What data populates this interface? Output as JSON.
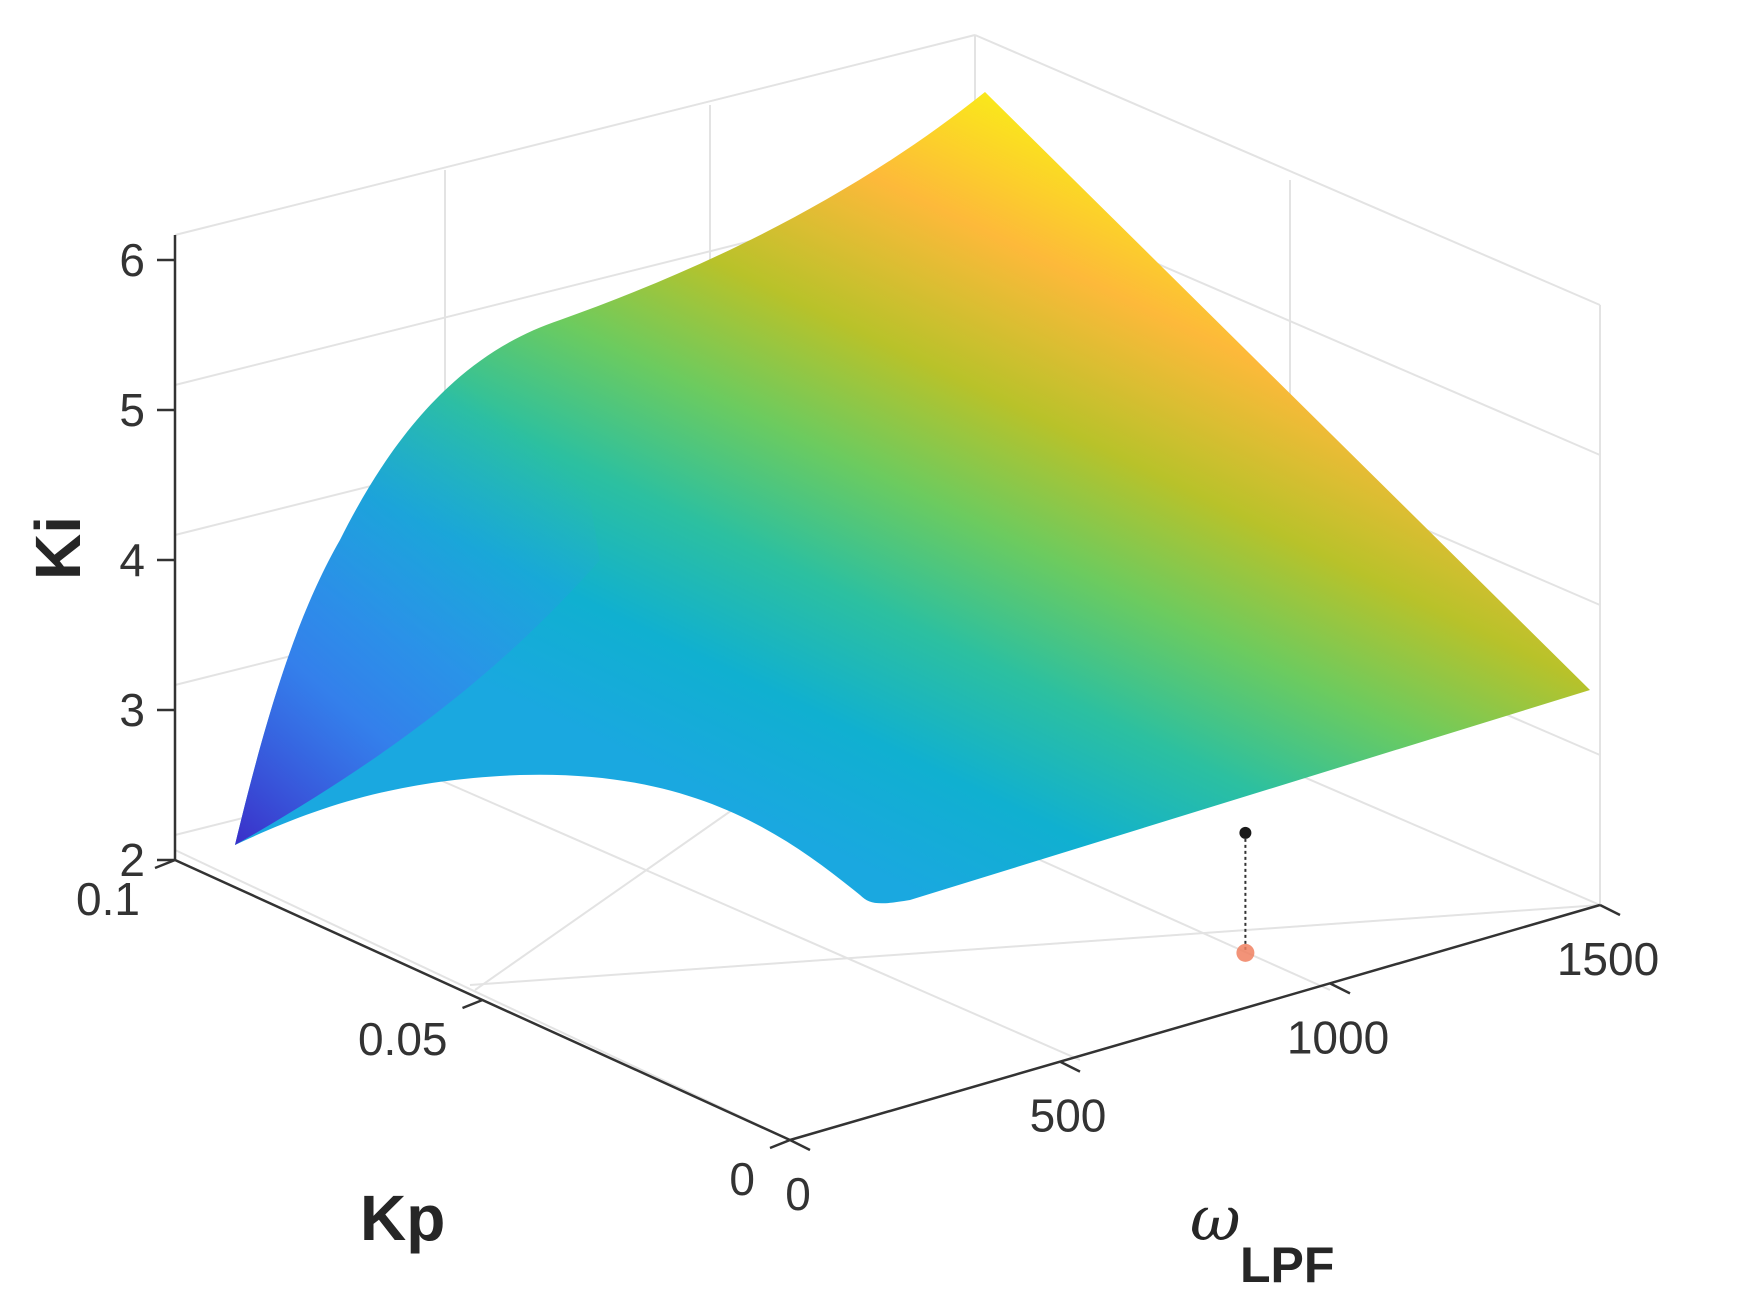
{
  "chart_data": {
    "type": "surface",
    "title": "",
    "xlabel": "ω",
    "xlabel_subscript": "LPF",
    "ylabel": "Kp",
    "zlabel": "Ki",
    "xlim": [
      0,
      1500
    ],
    "ylim": [
      0,
      0.1
    ],
    "zlim": [
      2,
      6
    ],
    "x_ticks": [
      {
        "value": 0,
        "label": "0"
      },
      {
        "value": 500,
        "label": "500"
      },
      {
        "value": 1000,
        "label": "1000"
      },
      {
        "value": 1500,
        "label": "1500"
      }
    ],
    "y_ticks": [
      {
        "value": 0,
        "label": "0"
      },
      {
        "value": 0.05,
        "label": "0.05"
      },
      {
        "value": 0.1,
        "label": "0.1"
      }
    ],
    "z_ticks": [
      {
        "value": 2,
        "label": "2"
      },
      {
        "value": 3,
        "label": "3"
      },
      {
        "value": 4,
        "label": "4"
      },
      {
        "value": 5,
        "label": "5"
      },
      {
        "value": 6,
        "label": "6"
      }
    ],
    "grid": true,
    "colormap": "parula",
    "surface_corners": [
      {
        "x": 0,
        "y": 0.1,
        "z": 2.0
      },
      {
        "x": 1500,
        "y": 0.1,
        "z": 6.0
      },
      {
        "x": 1500,
        "y": 0,
        "z": 3.0
      },
      {
        "x": 300,
        "y": 0,
        "z": 2.3
      }
    ],
    "marked_point": {
      "x": 980,
      "y": 0.012,
      "z": 2.8,
      "marker_color": "#1a1a1a",
      "projection_color": "#f08060"
    }
  }
}
